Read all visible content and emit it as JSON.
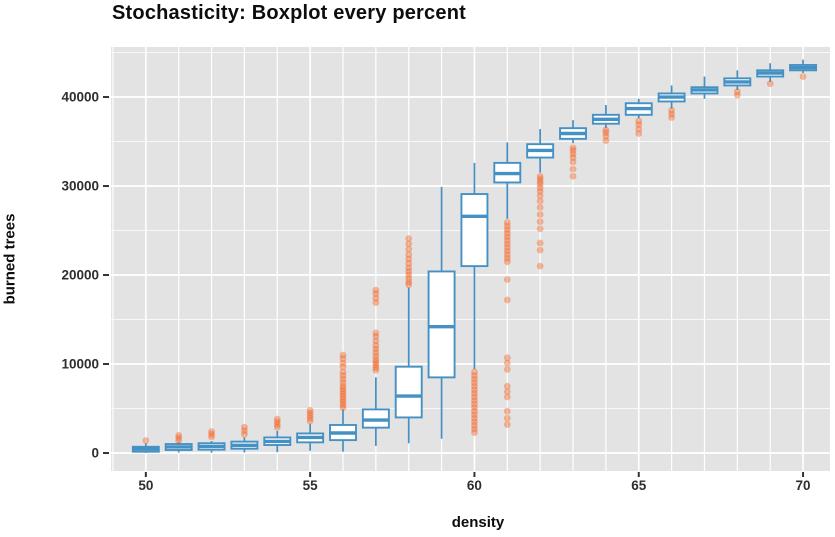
{
  "title": "Stochasticity: Boxplot every percent",
  "colors": {
    "panel_background": "#e3e3e3",
    "grid": "#ffffff",
    "box_stroke": "#4691c4",
    "box_fill": "#ffffff",
    "outlier_point": "#f4530e",
    "axis_text": "#2e2e2e",
    "label_text": "#0d0d0d"
  },
  "chart_data": {
    "type": "boxplot",
    "title": "Stochasticity: Boxplot every percent",
    "xlabel": "density",
    "ylabel": "burned trees",
    "legend": "none",
    "grid": "on",
    "xlim": [
      48.94,
      70.82
    ],
    "ylim": [
      -2020,
      45620
    ],
    "x_ticks": [
      50,
      55,
      60,
      65,
      70
    ],
    "x_tick_labels": [
      "50",
      "55",
      "60",
      "65",
      "70"
    ],
    "y_ticks": [
      0,
      10000,
      20000,
      30000,
      40000
    ],
    "y_tick_labels": [
      "0",
      "10000",
      "20000",
      "30000",
      "40000"
    ],
    "y_minor_ticks": [
      5000,
      15000,
      25000,
      35000,
      45000
    ],
    "x_grid_every": 1,
    "boxes": [
      {
        "x": 50,
        "low": 30,
        "q1": 150,
        "median": 430,
        "q3": 700,
        "high": 1100,
        "outliers": [
          1400
        ]
      },
      {
        "x": 51,
        "low": 60,
        "q1": 340,
        "median": 680,
        "q3": 1010,
        "high": 1250,
        "outliers": [
          1400,
          1700,
          2000
        ]
      },
      {
        "x": 52,
        "low": 50,
        "q1": 380,
        "median": 740,
        "q3": 1100,
        "high": 1350,
        "outliers": [
          1800,
          2100,
          2400
        ]
      },
      {
        "x": 53,
        "low": 60,
        "q1": 480,
        "median": 860,
        "q3": 1280,
        "high": 1750,
        "outliers": [
          2100,
          2500,
          2900
        ]
      },
      {
        "x": 54,
        "low": 100,
        "q1": 900,
        "median": 1300,
        "q3": 1750,
        "high": 2500,
        "outliers": [
          2900,
          3200,
          3500,
          3800
        ]
      },
      {
        "x": 55,
        "low": 250,
        "q1": 1200,
        "median": 1750,
        "q3": 2200,
        "high": 3300,
        "outliers": [
          3600,
          3900,
          4200,
          4500,
          4800
        ]
      },
      {
        "x": 56,
        "low": 150,
        "q1": 1450,
        "median": 2250,
        "q3": 3150,
        "high": 4900,
        "outliers": [
          5100,
          5400,
          5700,
          6000,
          6300,
          6600,
          6900,
          7200,
          7500,
          7900,
          8300,
          8700,
          9100,
          9700,
          10100,
          10600,
          11000
        ]
      },
      {
        "x": 57,
        "low": 800,
        "q1": 2850,
        "median": 3700,
        "q3": 4900,
        "high": 8500,
        "outliers": [
          9300,
          9600,
          9900,
          10200,
          10500,
          10900,
          11300,
          11700,
          12100,
          12600,
          13100,
          13500,
          16900,
          17400,
          17900,
          18300
        ]
      },
      {
        "x": 58,
        "low": 1100,
        "q1": 4000,
        "median": 6400,
        "q3": 9700,
        "high": 18600,
        "outliers": [
          18900,
          19200,
          19600,
          20000,
          20400,
          20800,
          21300,
          21800,
          22300,
          22900,
          23500,
          24100
        ]
      },
      {
        "x": 59,
        "low": 1600,
        "q1": 8500,
        "median": 14200,
        "q3": 20400,
        "high": 29900,
        "outliers": []
      },
      {
        "x": 60,
        "low": 9400,
        "q1": 21000,
        "median": 26600,
        "q3": 29100,
        "high": 32600,
        "outliers": [
          2300,
          2700,
          3100,
          3500,
          3900,
          4300,
          4700,
          5100,
          5500,
          5900,
          6300,
          6700,
          7100,
          7500,
          7900,
          8300,
          8700,
          9100
        ]
      },
      {
        "x": 61,
        "low": 26300,
        "q1": 30400,
        "median": 31400,
        "q3": 32600,
        "high": 34900,
        "outliers": [
          25900,
          25500,
          25100,
          24700,
          24300,
          23900,
          23500,
          23100,
          22700,
          22300,
          21900,
          21500,
          19500,
          17200,
          10700,
          10100,
          9400,
          7500,
          6900,
          6300,
          4700,
          3900,
          3200
        ]
      },
      {
        "x": 62,
        "low": 31500,
        "q1": 33200,
        "median": 34000,
        "q3": 34700,
        "high": 36400,
        "outliers": [
          31100,
          30800,
          30500,
          30200,
          29800,
          29400,
          28900,
          28300,
          27600,
          26800,
          26000,
          25200,
          23600,
          22800,
          21000
        ]
      },
      {
        "x": 63,
        "low": 34800,
        "q1": 35300,
        "median": 35900,
        "q3": 36500,
        "high": 37400,
        "outliers": [
          34300,
          34000,
          33600,
          33200,
          32700,
          31900,
          31100
        ]
      },
      {
        "x": 64,
        "low": 36500,
        "q1": 37000,
        "median": 37500,
        "q3": 38000,
        "high": 39100,
        "outliers": [
          36300,
          36000,
          35600,
          35100
        ]
      },
      {
        "x": 65,
        "low": 37600,
        "q1": 38000,
        "median": 38700,
        "q3": 39300,
        "high": 39800,
        "outliers": [
          37300,
          36900,
          36400,
          35900
        ]
      },
      {
        "x": 66,
        "low": 38700,
        "q1": 39500,
        "median": 40000,
        "q3": 40400,
        "high": 41300,
        "outliers": [
          38500,
          38100,
          37700
        ]
      },
      {
        "x": 67,
        "low": 39800,
        "q1": 40400,
        "median": 40800,
        "q3": 41100,
        "high": 42300,
        "outliers": []
      },
      {
        "x": 68,
        "low": 40800,
        "q1": 41300,
        "median": 41700,
        "q3": 42100,
        "high": 43000,
        "outliers": [
          40600,
          40200
        ]
      },
      {
        "x": 69,
        "low": 41700,
        "q1": 42300,
        "median": 42700,
        "q3": 43000,
        "high": 43800,
        "outliers": [
          41500
        ]
      },
      {
        "x": 70,
        "low": 42700,
        "q1": 43000,
        "median": 43300,
        "q3": 43600,
        "high": 44200,
        "outliers": [
          42300
        ]
      }
    ]
  }
}
